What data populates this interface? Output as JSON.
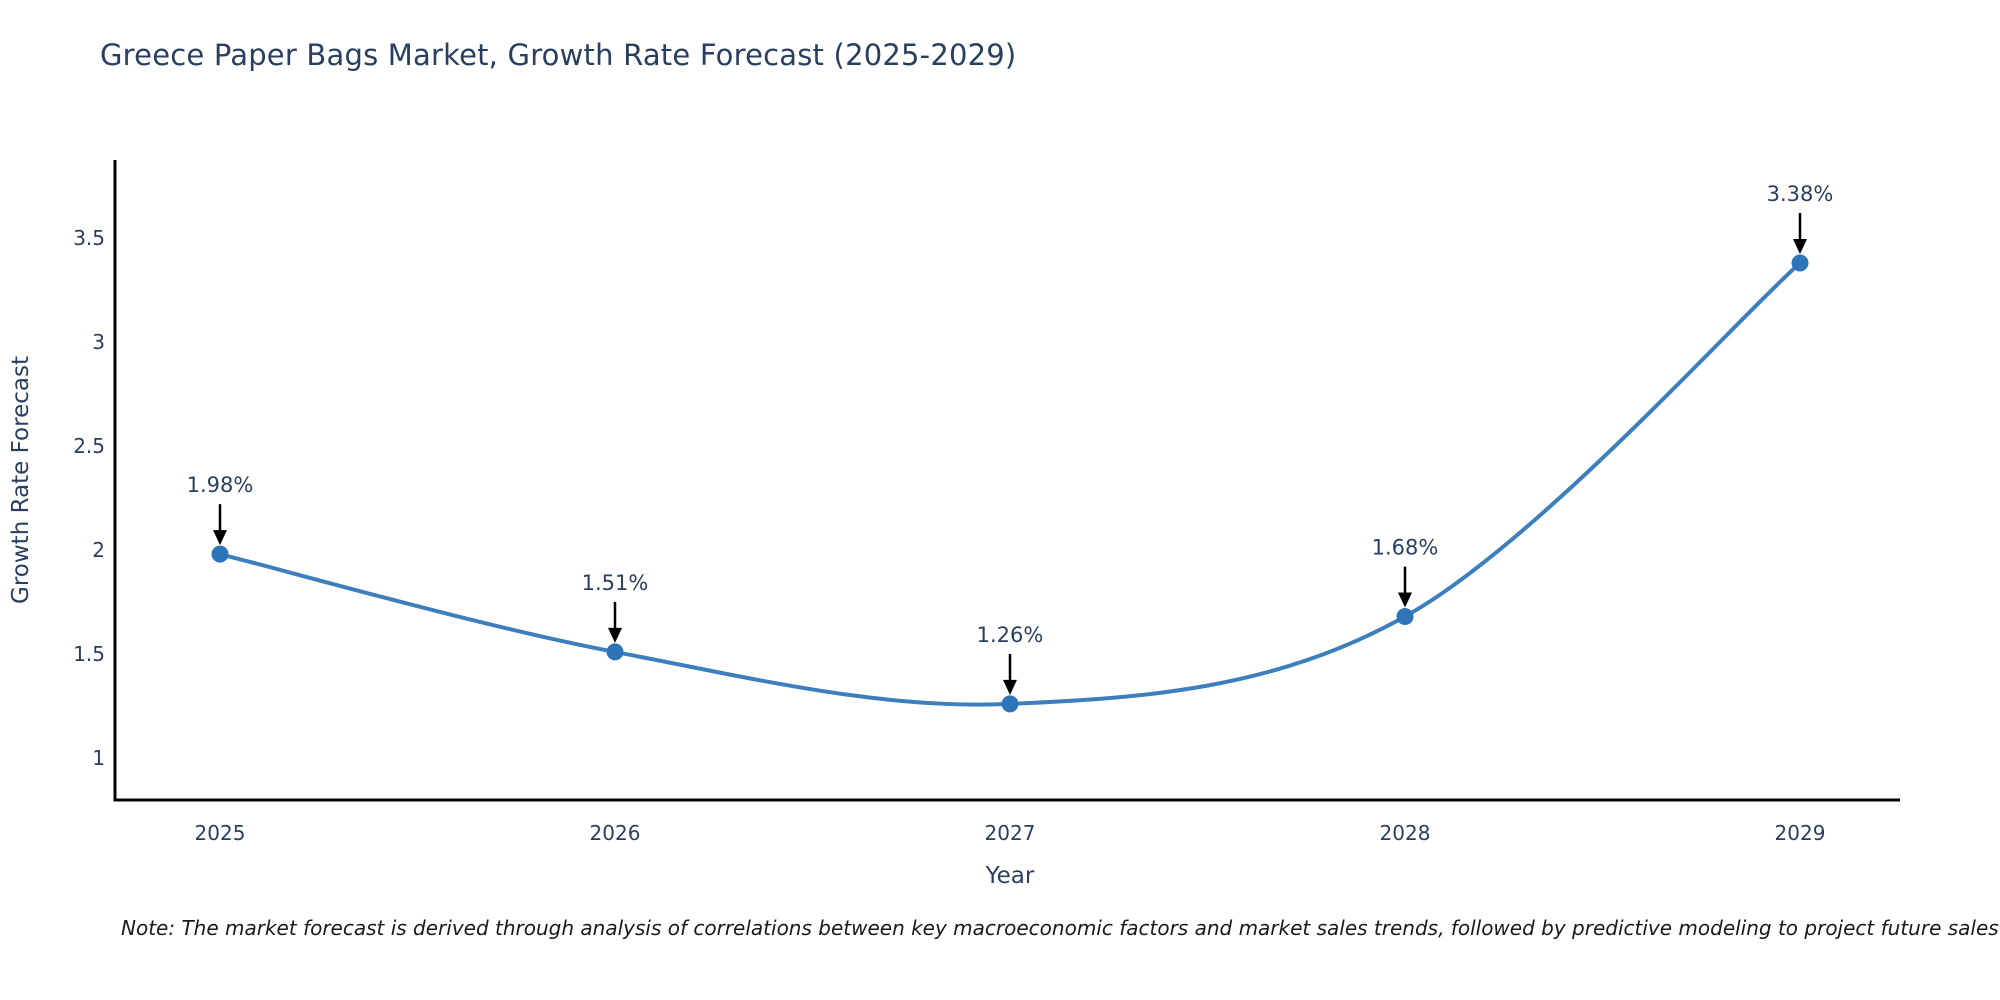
{
  "title": "Greece Paper Bags Market, Growth Rate Forecast (2025-2029)",
  "footnote": "Note: The market forecast is derived through analysis of correlations between key macroeconomic factors and market sales trends, followed by predictive modeling to project future sales",
  "chart_data": {
    "type": "line",
    "title": "Greece Paper Bags Market, Growth Rate Forecast (2025-2029)",
    "xlabel": "Year",
    "ylabel": "Growth Rate Forecast",
    "x": [
      2025,
      2026,
      2027,
      2028,
      2029
    ],
    "y": [
      1.98,
      1.51,
      1.26,
      1.68,
      3.38
    ],
    "point_labels": [
      "1.98%",
      "1.51%",
      "1.26%",
      "1.68%",
      "3.38%"
    ],
    "xticks": [
      "2025",
      "2026",
      "2027",
      "2028",
      "2029"
    ],
    "yticks": [
      1,
      1.5,
      2,
      2.5,
      3,
      3.5
    ],
    "ylim": [
      0.81,
      3.88
    ],
    "line_shape": "spline",
    "grid": false,
    "legend": "none",
    "colors": {
      "line": "#3d7ebd",
      "marker": "#2d74b8",
      "axis_line": "#000000",
      "text": "#2a3f5f",
      "annotation_arrow": "#000000",
      "note_text": "#1a1a1a",
      "background": "#ffffff"
    }
  }
}
